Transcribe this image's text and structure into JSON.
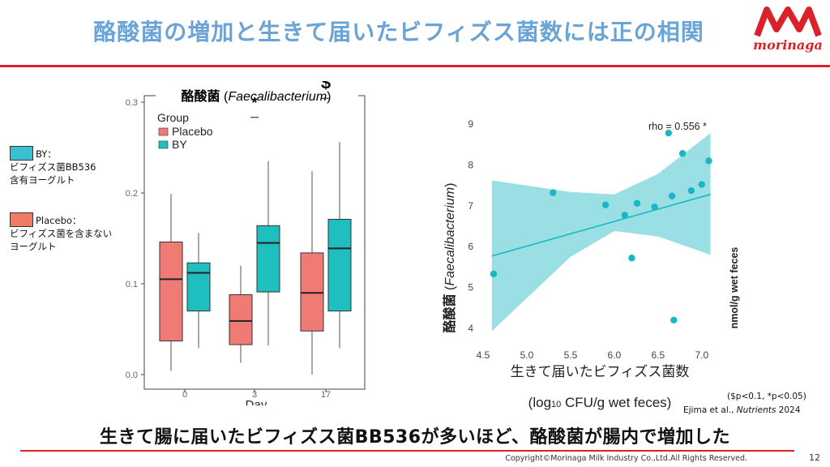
{
  "slide": {
    "title": "酪酸菌の増加と生きて届いたビフィズス菌数には正の相関",
    "logo_text": "morinaga",
    "conclusion": "生きて腸に届いたビフィズス菌BB536が多いほど、酪酸菌が腸内で増加した",
    "copyright": "Copyright©Morinaga Milk Industry Co.,Ltd.All Rights Reserved.",
    "page_number": "12",
    "significance_note": "($p<0.1, *p<0.05)",
    "citation_prefix": "Ejima et al., ",
    "citation_journal": "Nutrients",
    "citation_year": " 2024",
    "colors": {
      "accent": "#d9222a",
      "title": "#6aa3d6",
      "by": "#1fbfbf",
      "placebo": "#ef7b74",
      "scatter": "#17b8c4",
      "band": "#8fdce0"
    }
  },
  "side_legend": {
    "by_line1": "BY：",
    "by_line2": "ビフィズス菌BB536",
    "by_line3": "含有ヨーグルト",
    "placebo_line1": "Placebo：",
    "placebo_line2": "ビフィズス菌を含まない",
    "placebo_line3": "ヨーグルト"
  },
  "chart_data": [
    {
      "type": "box",
      "title_jp": "酪酸菌",
      "title_open": " (",
      "title_latin": "Faecalibacterium",
      "title_close": ")",
      "xlabel": "Day",
      "categories": [
        "0",
        "3",
        "17"
      ],
      "ylim": [
        0,
        0.3
      ],
      "yticks": [
        "0.0",
        "0.1",
        "0.2",
        "0.3"
      ],
      "ytick_values": [
        0,
        0.1,
        0.2,
        0.3
      ],
      "legend_title": "Group",
      "series": [
        {
          "name": "Placebo",
          "color": "#ef7b74",
          "boxes": [
            {
              "min": 0.004,
              "q1": 0.037,
              "median": 0.105,
              "q3": 0.146,
              "max": 0.199
            },
            {
              "min": 0.013,
              "q1": 0.033,
              "median": 0.059,
              "q3": 0.088,
              "max": 0.12
            },
            {
              "min": 0.0,
              "q1": 0.048,
              "median": 0.09,
              "q3": 0.134,
              "max": 0.224
            }
          ]
        },
        {
          "name": "BY",
          "color": "#1fbfbf",
          "boxes": [
            {
              "min": 0.029,
              "q1": 0.07,
              "median": 0.112,
              "q3": 0.123,
              "max": 0.156
            },
            {
              "min": 0.032,
              "q1": 0.091,
              "median": 0.145,
              "q3": 0.164,
              "max": 0.235
            },
            {
              "min": 0.029,
              "q1": 0.07,
              "median": 0.139,
              "q3": 0.171,
              "max": 0.256
            }
          ]
        }
      ],
      "significance": [
        "",
        "*",
        "$"
      ]
    },
    {
      "type": "scatter",
      "xlabel_line1": "生きて届いたビフィズス菌数",
      "xlabel_line2_a": "(log",
      "xlabel_line2_sub": "10",
      "xlabel_line2_b": " CFU/g wet feces)",
      "ylabel_jp": "酪酸菌",
      "ylabel_open": " (",
      "ylabel_latin": "Faecalibacterium",
      "ylabel_close": ")",
      "ylabel_unit": "nmol/g wet feces",
      "xlim": [
        4.5,
        7.15
      ],
      "ylim": [
        3.7,
        9.1
      ],
      "xticks": [
        "4.5",
        "5.0",
        "5.5",
        "6.0",
        "6.5",
        "7.0"
      ],
      "xtick_values": [
        4.5,
        5.0,
        5.5,
        6.0,
        6.5,
        7.0
      ],
      "yticks": [
        "4",
        "5",
        "6",
        "7",
        "8",
        "9"
      ],
      "ytick_values": [
        4,
        5,
        6,
        7,
        8,
        9
      ],
      "annotation": "rho =  0.556 *",
      "points": [
        {
          "x": 4.62,
          "y": 5.33
        },
        {
          "x": 5.3,
          "y": 7.32
        },
        {
          "x": 5.9,
          "y": 7.02
        },
        {
          "x": 6.12,
          "y": 6.77
        },
        {
          "x": 6.2,
          "y": 5.72
        },
        {
          "x": 6.26,
          "y": 7.06
        },
        {
          "x": 6.46,
          "y": 6.97
        },
        {
          "x": 6.62,
          "y": 8.78
        },
        {
          "x": 6.66,
          "y": 7.24
        },
        {
          "x": 6.68,
          "y": 4.2
        },
        {
          "x": 6.78,
          "y": 8.28
        },
        {
          "x": 6.88,
          "y": 7.37
        },
        {
          "x": 7.0,
          "y": 7.52
        },
        {
          "x": 7.08,
          "y": 8.1
        }
      ],
      "fit": {
        "x0": 4.6,
        "y0": 5.77,
        "x1": 7.1,
        "y1": 7.28
      },
      "band_upper": [
        {
          "x": 4.6,
          "y": 7.62
        },
        {
          "x": 5.5,
          "y": 7.34
        },
        {
          "x": 6.0,
          "y": 7.28
        },
        {
          "x": 6.5,
          "y": 7.78
        },
        {
          "x": 7.1,
          "y": 8.78
        }
      ],
      "band_lower": [
        {
          "x": 7.1,
          "y": 5.8
        },
        {
          "x": 6.5,
          "y": 6.25
        },
        {
          "x": 6.0,
          "y": 6.38
        },
        {
          "x": 5.5,
          "y": 5.75
        },
        {
          "x": 4.6,
          "y": 3.93
        }
      ]
    }
  ]
}
